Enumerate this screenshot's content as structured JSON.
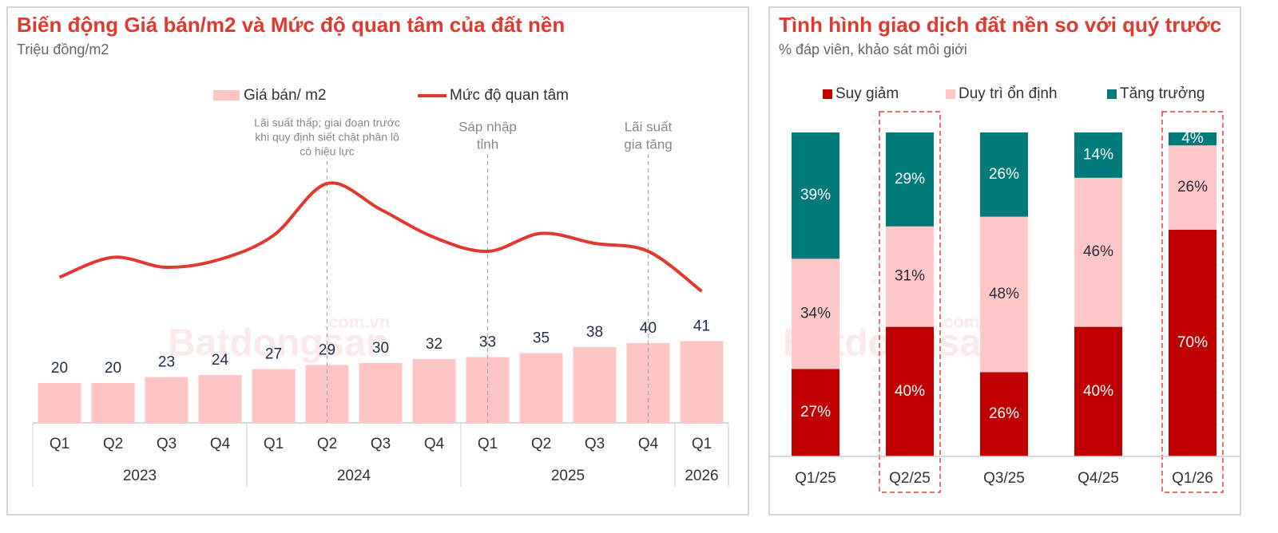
{
  "chart_data": [
    {
      "type": "bar_line",
      "title": "Biến động Giá bán/m2 và Mức độ quan tâm của đất nền",
      "subtitle": "Triệu đồng/m2",
      "categories": [
        "Q1",
        "Q2",
        "Q3",
        "Q4",
        "Q1",
        "Q2",
        "Q3",
        "Q4",
        "Q1",
        "Q2",
        "Q3",
        "Q4",
        "Q1"
      ],
      "years": [
        "2023",
        "2023",
        "2023",
        "2023",
        "2024",
        "2024",
        "2024",
        "2024",
        "2025",
        "2025",
        "2025",
        "2025",
        "2026"
      ],
      "series": [
        {
          "name": "Giá bán/ m2",
          "type": "bar",
          "color": "#ffc4c4",
          "values": [
            20,
            20,
            23,
            24,
            27,
            29,
            30,
            32,
            33,
            35,
            38,
            40,
            41
          ]
        },
        {
          "name": "Mức độ quan tâm",
          "type": "line",
          "color": "#e03a2e",
          "axis": "y2",
          "values": [
            73,
            83,
            78,
            82,
            94,
            120,
            107,
            93,
            86,
            95,
            90,
            86,
            66
          ]
        }
      ],
      "ylim": [
        0,
        156
      ],
      "y2lim": [
        0,
        156
      ],
      "annotations": [
        {
          "lines": [
            "Lãi suất thấp; giai đoạn trước",
            "khi quy định siết chặt phân lô",
            "có hiệu lực"
          ],
          "x": 5
        },
        {
          "lines": [
            "Sáp nhập",
            "tỉnh"
          ],
          "x": 8
        },
        {
          "lines": [
            "Lãi suất",
            "gia tăng"
          ],
          "x": 11
        }
      ],
      "watermark": [
        "Batdongsan",
        ".com.vn"
      ]
    },
    {
      "type": "stacked_bar",
      "title": "Tình hình giao dịch đất nền so với quý trước",
      "subtitle": "% đáp viên, khảo sát môi giới",
      "categories": [
        "Q1/25",
        "Q2/25",
        "Q3/25",
        "Q4/25",
        "Q1/26"
      ],
      "series": [
        {
          "name": "Suy giảm",
          "color": "#c00000",
          "label_color": "#ffffff",
          "values": [
            27,
            40,
            26,
            40,
            70
          ],
          "value_labels": [
            "27%",
            "40%",
            "26%",
            "40%",
            "70%"
          ]
        },
        {
          "name": "Duy trì ổn định",
          "color": "#ffc7c7",
          "label_color": "#2b2b3b",
          "values": [
            34,
            31,
            48,
            46,
            26
          ],
          "value_labels": [
            "34%",
            "31%",
            "48%",
            "46%",
            "26%"
          ]
        },
        {
          "name": "Tăng trưởng",
          "color": "#007a7a",
          "label_color": "#ffffff",
          "values": [
            39,
            29,
            26,
            14,
            4
          ],
          "value_labels": [
            "39%",
            "29%",
            "26%",
            "14%",
            "4%"
          ]
        }
      ],
      "ylim": [
        0,
        100
      ],
      "highlight": [
        "Q2/25",
        "Q1/26"
      ],
      "watermark": [
        "Batdongsan",
        ".com.vn"
      ]
    }
  ]
}
